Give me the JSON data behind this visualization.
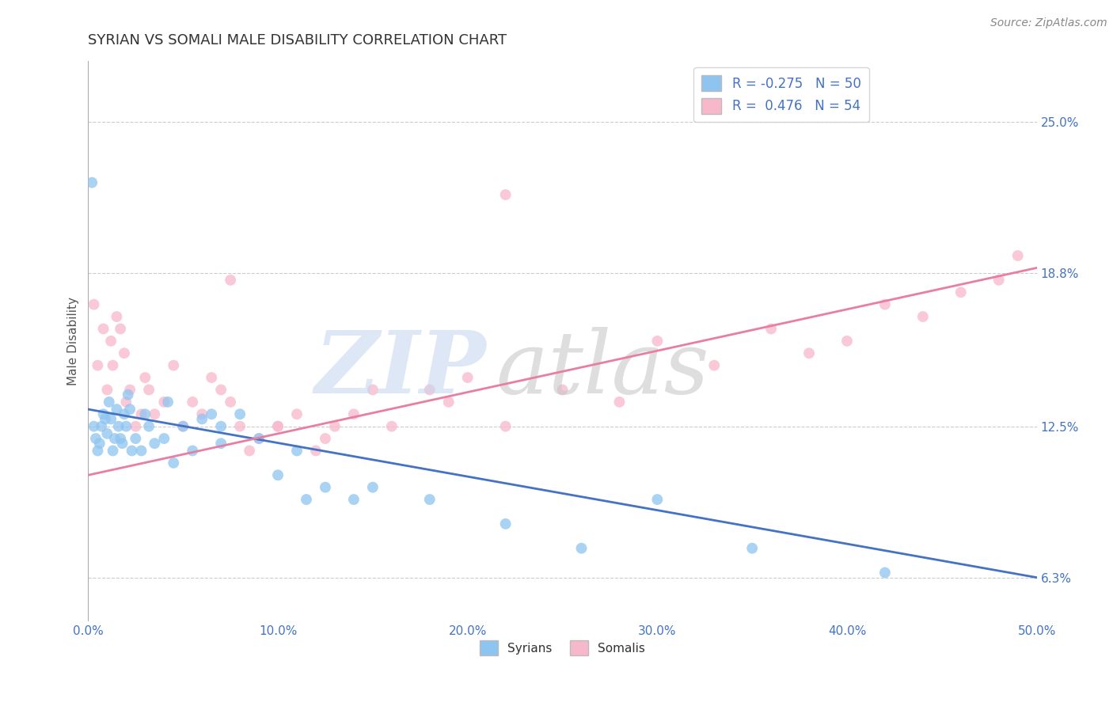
{
  "title": "SYRIAN VS SOMALI MALE DISABILITY CORRELATION CHART",
  "source_text": "Source: ZipAtlas.com",
  "xlabel_vals": [
    0.0,
    10.0,
    20.0,
    30.0,
    40.0,
    50.0
  ],
  "ylabel_ticks": [
    "6.3%",
    "12.5%",
    "18.8%",
    "25.0%"
  ],
  "ylabel_vals": [
    6.3,
    12.5,
    18.8,
    25.0
  ],
  "ylabel_label": "Male Disability",
  "xlim": [
    0.0,
    50.0
  ],
  "ylim": [
    4.5,
    27.5
  ],
  "syrian_color": "#8EC4F0",
  "somali_color": "#F7B8CC",
  "syrian_line_color": "#4472C4",
  "somali_line_color": "#E87FA0",
  "legend_text_color": "#4472C4",
  "background_color": "#FFFFFF",
  "grid_color": "#CCCCCC",
  "syrian_R": -0.275,
  "syrian_N": 50,
  "somali_R": 0.476,
  "somali_N": 54,
  "syrian_line_x": [
    0.0,
    50.0
  ],
  "syrian_line_y": [
    13.2,
    6.3
  ],
  "somali_line_x": [
    0.0,
    50.0
  ],
  "somali_line_y": [
    10.5,
    19.0
  ],
  "syrian_scatter_x": [
    0.2,
    0.3,
    0.4,
    0.5,
    0.6,
    0.7,
    0.8,
    0.9,
    1.0,
    1.1,
    1.2,
    1.3,
    1.4,
    1.5,
    1.6,
    1.7,
    1.8,
    1.9,
    2.0,
    2.1,
    2.2,
    2.3,
    2.5,
    2.8,
    3.0,
    3.2,
    3.5,
    4.0,
    4.2,
    4.5,
    5.0,
    5.5,
    6.0,
    6.5,
    7.0,
    7.0,
    8.0,
    9.0,
    10.0,
    11.0,
    11.5,
    12.5,
    14.0,
    15.0,
    18.0,
    22.0,
    26.0,
    30.0,
    35.0,
    42.0
  ],
  "syrian_scatter_y": [
    22.5,
    12.5,
    12.0,
    11.5,
    11.8,
    12.5,
    13.0,
    12.8,
    12.2,
    13.5,
    12.8,
    11.5,
    12.0,
    13.2,
    12.5,
    12.0,
    11.8,
    13.0,
    12.5,
    13.8,
    13.2,
    11.5,
    12.0,
    11.5,
    13.0,
    12.5,
    11.8,
    12.0,
    13.5,
    11.0,
    12.5,
    11.5,
    12.8,
    13.0,
    11.8,
    12.5,
    13.0,
    12.0,
    10.5,
    11.5,
    9.5,
    10.0,
    9.5,
    10.0,
    9.5,
    8.5,
    7.5,
    9.5,
    7.5,
    6.5
  ],
  "somali_scatter_x": [
    0.3,
    0.5,
    0.8,
    1.0,
    1.2,
    1.3,
    1.5,
    1.7,
    1.9,
    2.0,
    2.2,
    2.5,
    2.8,
    3.0,
    3.2,
    3.5,
    4.0,
    4.5,
    5.0,
    5.5,
    6.0,
    6.5,
    7.0,
    7.5,
    8.0,
    8.5,
    9.0,
    10.0,
    11.0,
    12.0,
    12.5,
    13.0,
    14.0,
    15.0,
    16.0,
    18.0,
    19.0,
    20.0,
    22.0,
    25.0,
    28.0,
    30.0,
    33.0,
    36.0,
    38.0,
    40.0,
    42.0,
    44.0,
    46.0,
    48.0,
    49.0,
    22.0,
    10.0,
    7.5
  ],
  "somali_scatter_y": [
    17.5,
    15.0,
    16.5,
    14.0,
    16.0,
    15.0,
    17.0,
    16.5,
    15.5,
    13.5,
    14.0,
    12.5,
    13.0,
    14.5,
    14.0,
    13.0,
    13.5,
    15.0,
    12.5,
    13.5,
    13.0,
    14.5,
    14.0,
    13.5,
    12.5,
    11.5,
    12.0,
    12.5,
    13.0,
    11.5,
    12.0,
    12.5,
    13.0,
    14.0,
    12.5,
    14.0,
    13.5,
    14.5,
    12.5,
    14.0,
    13.5,
    16.0,
    15.0,
    16.5,
    15.5,
    16.0,
    17.5,
    17.0,
    18.0,
    18.5,
    19.5,
    22.0,
    12.5,
    18.5
  ]
}
